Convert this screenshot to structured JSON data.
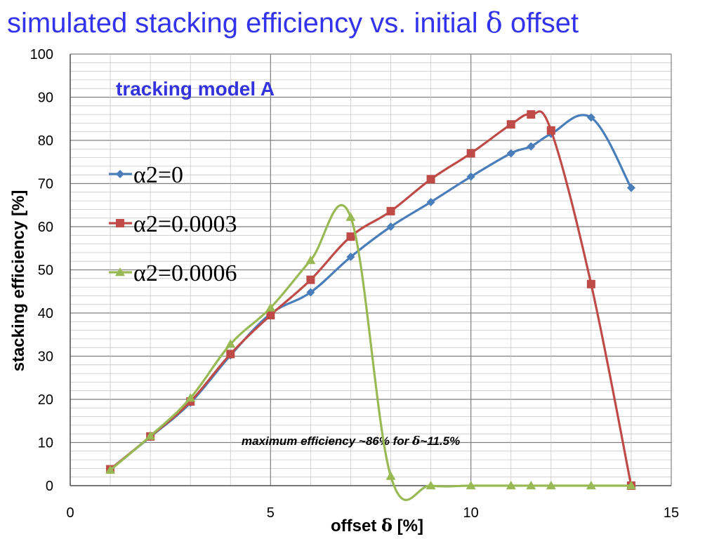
{
  "title_text": "simulated stacking efficiency vs. initial ",
  "title_delta": "δ",
  "title_suffix": " offset",
  "chart_data": {
    "type": "scatter",
    "subtitle": "tracking model A",
    "xlabel_text": "offset ",
    "xlabel_delta": "δ",
    "xlabel_unit": " [%]",
    "ylabel": "stacking efficiency [%]",
    "xlim": [
      0,
      15
    ],
    "ylim": [
      0,
      100
    ],
    "x_ticks": [
      0,
      5,
      10,
      15
    ],
    "y_ticks": [
      0,
      10,
      20,
      30,
      40,
      50,
      60,
      70,
      80,
      90,
      100
    ],
    "grid": true,
    "legend_position": "left",
    "annotation_text": "maximum efficiency ~86% for ",
    "annotation_delta": "δ",
    "annotation_suffix": "~11.5%",
    "series": [
      {
        "name": "α2=0",
        "color": "#4a7ebb",
        "marker": "diamond",
        "x": [
          1,
          2,
          3,
          4,
          5,
          6,
          7,
          8,
          9,
          10,
          11,
          11.5,
          12,
          13,
          14
        ],
        "y": [
          3.8,
          11.3,
          19.2,
          30.2,
          39.8,
          44.8,
          53,
          60,
          65.7,
          71.6,
          77,
          78.6,
          81.5,
          85.3,
          69
        ]
      },
      {
        "name": "α2=0.0003",
        "color": "#be4b48",
        "marker": "square",
        "x": [
          1,
          2,
          3,
          4,
          5,
          6,
          7,
          8,
          9,
          10,
          11,
          11.5,
          12,
          13,
          14
        ],
        "y": [
          3.8,
          11.4,
          19.5,
          30.5,
          39.5,
          47.7,
          57.7,
          63.6,
          71,
          77,
          83.7,
          86,
          82.3,
          46.7,
          0
        ]
      },
      {
        "name": "α2=0.0006",
        "color": "#98b954",
        "marker": "triangle",
        "x": [
          1,
          2,
          3,
          4,
          5,
          6,
          7,
          8,
          9,
          10,
          11,
          11.5,
          12,
          13,
          14
        ],
        "y": [
          3.6,
          11.5,
          20.3,
          32.8,
          41.2,
          52.2,
          62.2,
          2.2,
          0,
          0,
          0,
          0,
          0,
          0,
          0
        ]
      }
    ]
  }
}
